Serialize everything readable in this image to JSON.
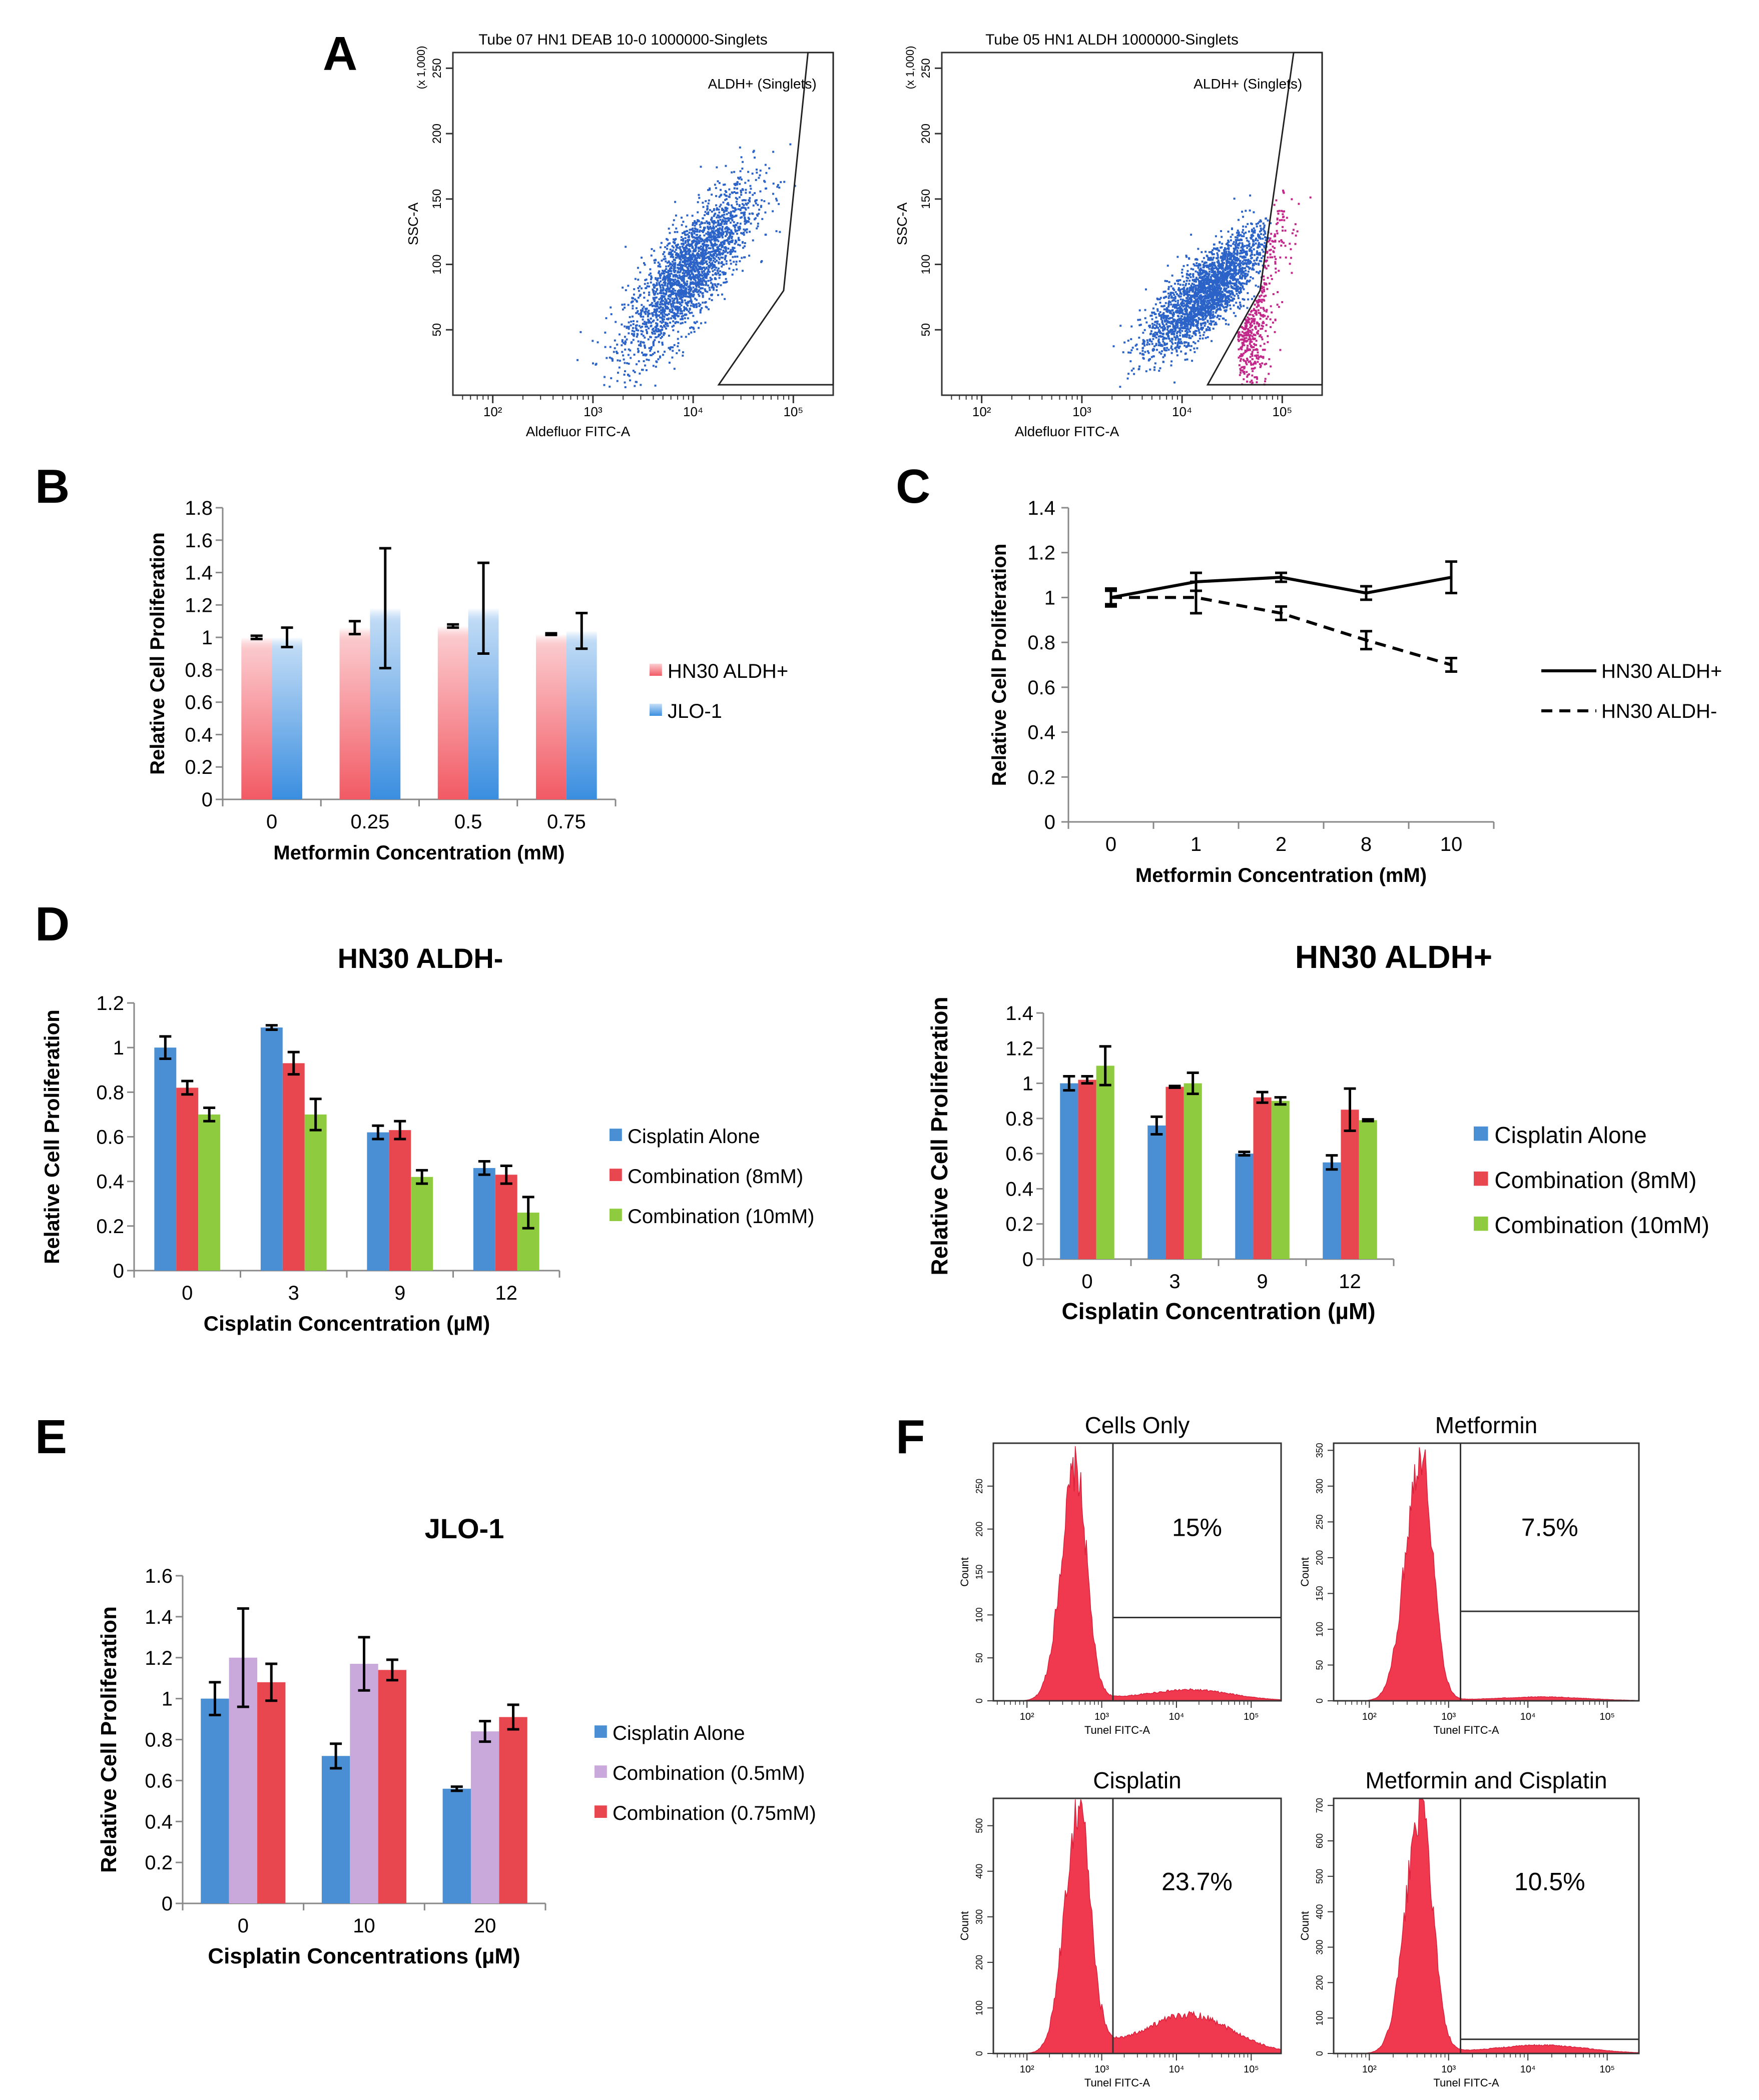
{
  "panel_letters": [
    "A",
    "B",
    "C",
    "D",
    "E",
    "F"
  ],
  "chart_data": [
    {
      "panel": "A",
      "type": "scatter",
      "role": "flow-left",
      "title": "Tube 07 HN1 DEAB 10-0 1000000-Singlets",
      "xlabel": "Aldefluor FITC-A",
      "ylabel": "SSC-A",
      "y_multiplier": "(x 1,000)",
      "gate_label": "ALDH+ (Singlets)",
      "x_scale": "log",
      "xlim": [
        40,
        250000
      ],
      "x_ticks": [
        {
          "v": 100,
          "label": "10²"
        },
        {
          "v": 1000,
          "label": "10³"
        },
        {
          "v": 10000,
          "label": "10⁴"
        },
        {
          "v": 100000,
          "label": "10⁵"
        }
      ],
      "ylim": [
        0,
        262
      ],
      "y_ticks": [
        50,
        100,
        150,
        200,
        250
      ],
      "gate_polygon": [
        [
          18000,
          8
        ],
        [
          80000,
          80
        ],
        [
          140000,
          262
        ],
        [
          250000,
          262
        ],
        [
          250000,
          8
        ]
      ],
      "cluster": {
        "cx_log": 3.95,
        "cy": 95,
        "sx": 0.32,
        "sy": 36,
        "n": 2400
      },
      "gated_fraction": "few",
      "colors": {
        "dots": "#2b63c8",
        "gated": "#c2288a"
      }
    },
    {
      "panel": "A",
      "type": "scatter",
      "role": "flow-right",
      "title": "Tube 05 HN1 ALDH 1000000-Singlets",
      "xlabel": "Aldefluor FITC-A",
      "ylabel": "SSC-A",
      "y_multiplier": "(x 1,000)",
      "gate_label": "ALDH+ (Singlets)",
      "x_scale": "log",
      "xlim": [
        40,
        250000
      ],
      "x_ticks": [
        {
          "v": 100,
          "label": "10²"
        },
        {
          "v": 1000,
          "label": "10³"
        },
        {
          "v": 10000,
          "label": "10⁴"
        },
        {
          "v": 100000,
          "label": "10⁵"
        }
      ],
      "ylim": [
        0,
        262
      ],
      "y_ticks": [
        50,
        100,
        150,
        200,
        250
      ],
      "gate_polygon": [
        [
          18000,
          8
        ],
        [
          60000,
          80
        ],
        [
          130000,
          262
        ],
        [
          250000,
          262
        ],
        [
          250000,
          8
        ]
      ],
      "cluster": {
        "cx_log": 4.25,
        "cy": 80,
        "sx": 0.3,
        "sy": 26,
        "n": 2600
      },
      "gated_fraction": "many",
      "colors": {
        "dots": "#2b63c8",
        "gated": "#c2288a"
      }
    },
    {
      "panel": "B",
      "type": "bar",
      "xlabel": "Metformin Concentration (mM)",
      "ylabel": "Relative Cell Proliferation",
      "categories": [
        "0",
        "0.25",
        "0.5",
        "0.75"
      ],
      "ylim": [
        0,
        1.8
      ],
      "y_ticks": [
        "0",
        "0.2",
        "0.4",
        "0.6",
        "0.8",
        "1",
        "1.2",
        "1.4",
        "1.6",
        "1.8"
      ],
      "series": [
        {
          "name": "HN30 ALDH+",
          "values": [
            1.0,
            1.06,
            1.07,
            1.02
          ],
          "errors": [
            0.01,
            0.04,
            0.01,
            0.005
          ],
          "color": "#f25a64",
          "style": "gradient-red"
        },
        {
          "name": "JLO-1",
          "values": [
            1.0,
            1.18,
            1.18,
            1.04
          ],
          "errors": [
            0.06,
            0.37,
            0.28,
            0.11
          ],
          "color": "#3a8ee0",
          "style": "gradient-blue"
        }
      ]
    },
    {
      "panel": "C",
      "type": "line",
      "xlabel": "Metformin Concentration (mM)",
      "ylabel": "Relative Cell Proliferation",
      "categories": [
        "0",
        "1",
        "2",
        "8",
        "10"
      ],
      "ylim": [
        0,
        1.4
      ],
      "y_ticks": [
        "0",
        "0.2",
        "0.4",
        "0.6",
        "0.8",
        "1",
        "1.2",
        "1.4"
      ],
      "series": [
        {
          "name": "HN30 ALDH+",
          "values": [
            1.0,
            1.07,
            1.09,
            1.02,
            1.09
          ],
          "errors": [
            0.04,
            0.04,
            0.02,
            0.03,
            0.07
          ],
          "dash": "solid"
        },
        {
          "name": "HN30 ALDH-",
          "values": [
            1.0,
            1.0,
            0.93,
            0.81,
            0.7
          ],
          "errors": [
            0.03,
            0.07,
            0.03,
            0.04,
            0.03
          ],
          "dash": "dashed"
        }
      ]
    },
    {
      "panel": "D",
      "type": "bar",
      "role": "d-left",
      "title": "HN30 ALDH-",
      "xlabel": "Cisplatin Concentration (µM)",
      "ylabel": "Relative Cell Proliferation",
      "categories": [
        "0",
        "3",
        "9",
        "12"
      ],
      "ylim": [
        0,
        1.2
      ],
      "y_ticks": [
        "0",
        "0.2",
        "0.4",
        "0.6",
        "0.8",
        "1",
        "1.2"
      ],
      "series": [
        {
          "name": "Cisplatin Alone",
          "values": [
            1.0,
            1.09,
            0.62,
            0.46
          ],
          "errors": [
            0.05,
            0.01,
            0.03,
            0.03
          ],
          "color": "#4a8fd4"
        },
        {
          "name": "Combination (8mM)",
          "values": [
            0.82,
            0.93,
            0.63,
            0.43
          ],
          "errors": [
            0.03,
            0.05,
            0.04,
            0.04
          ],
          "color": "#e8474f"
        },
        {
          "name": "Combination (10mM)",
          "values": [
            0.7,
            0.7,
            0.42,
            0.26
          ],
          "errors": [
            0.03,
            0.07,
            0.03,
            0.07
          ],
          "color": "#8fcb3f"
        }
      ]
    },
    {
      "panel": "D",
      "type": "bar",
      "role": "d-right",
      "title": "HN30 ALDH+",
      "xlabel": "Cisplatin Concentration (µM)",
      "ylabel": "Relative Cell Proliferation",
      "categories": [
        "0",
        "3",
        "9",
        "12"
      ],
      "ylim": [
        0,
        1.4
      ],
      "y_ticks": [
        "0",
        "0.2",
        "0.4",
        "0.6",
        "0.8",
        "1",
        "1.2",
        "1.4"
      ],
      "series": [
        {
          "name": "Cisplatin Alone",
          "values": [
            1.0,
            0.76,
            0.6,
            0.55
          ],
          "errors": [
            0.04,
            0.05,
            0.01,
            0.04
          ],
          "color": "#4a8fd4"
        },
        {
          "name": "Combination (8mM)",
          "values": [
            1.02,
            0.98,
            0.92,
            0.85
          ],
          "errors": [
            0.02,
            0.005,
            0.03,
            0.12
          ],
          "color": "#e8474f"
        },
        {
          "name": "Combination (10mM)",
          "values": [
            1.1,
            1.0,
            0.9,
            0.79
          ],
          "errors": [
            0.11,
            0.06,
            0.02,
            0.005
          ],
          "color": "#8fcb3f"
        }
      ]
    },
    {
      "panel": "E",
      "type": "bar",
      "title": "JLO-1",
      "xlabel": "Cisplatin Concentrations (µM)",
      "ylabel": "Relative Cell Proliferation",
      "categories": [
        "0",
        "10",
        "20"
      ],
      "ylim": [
        0,
        1.6
      ],
      "y_ticks": [
        "0",
        "0.2",
        "0.4",
        "0.6",
        "0.8",
        "1",
        "1.2",
        "1.4",
        "1.6"
      ],
      "series": [
        {
          "name": "Cisplatin Alone",
          "values": [
            1.0,
            0.72,
            0.56
          ],
          "errors": [
            0.08,
            0.06,
            0.01
          ],
          "color": "#4a8fd4"
        },
        {
          "name": "Combination (0.5mM)",
          "values": [
            1.2,
            1.17,
            0.84
          ],
          "errors": [
            0.24,
            0.13,
            0.05
          ],
          "color": "#c9a8dc"
        },
        {
          "name": "Combination (0.75mM)",
          "values": [
            1.08,
            1.14,
            0.91
          ],
          "errors": [
            0.09,
            0.05,
            0.06
          ],
          "color": "#e8474f"
        }
      ]
    },
    {
      "panel": "F",
      "type": "area",
      "role": "hist",
      "xlabel": "Tunel FITC-A",
      "ylabel": "Count",
      "x_scale": "log",
      "x_ticks": [
        "10²",
        "10³",
        "10⁴",
        "10⁵"
      ],
      "fill_color": "#f0384f",
      "histograms": [
        {
          "title": "Cells Only",
          "percent": "15%",
          "y_ticks": [
            "0",
            "50",
            "100",
            "150",
            "200",
            "250"
          ],
          "ymax": 300,
          "peak": 270,
          "peak_log": 2.65,
          "tail": 12,
          "gate_level": 97
        },
        {
          "title": "Metformin",
          "percent": "7.5%",
          "y_ticks": [
            "0",
            "50",
            "100",
            "150",
            "200",
            "250",
            "300",
            "350"
          ],
          "ymax": 360,
          "peak": 345,
          "peak_log": 2.65,
          "tail": 5,
          "gate_level": 125
        },
        {
          "title": "Cisplatin",
          "percent": "23.7%",
          "y_ticks": [
            "0",
            "100",
            "200",
            "300",
            "400",
            "500"
          ],
          "ymax": 560,
          "peak": 545,
          "peak_log": 2.7,
          "tail": 80,
          "gate_level": 0
        },
        {
          "title": "Metformin and Cisplatin",
          "percent": "10.5%",
          "y_ticks": [
            "0",
            "100",
            "200",
            "300",
            "400",
            "500",
            "600",
            "700"
          ],
          "ymax": 720,
          "peak": 690,
          "peak_log": 2.65,
          "tail": 22,
          "gate_level": 40
        }
      ]
    }
  ]
}
